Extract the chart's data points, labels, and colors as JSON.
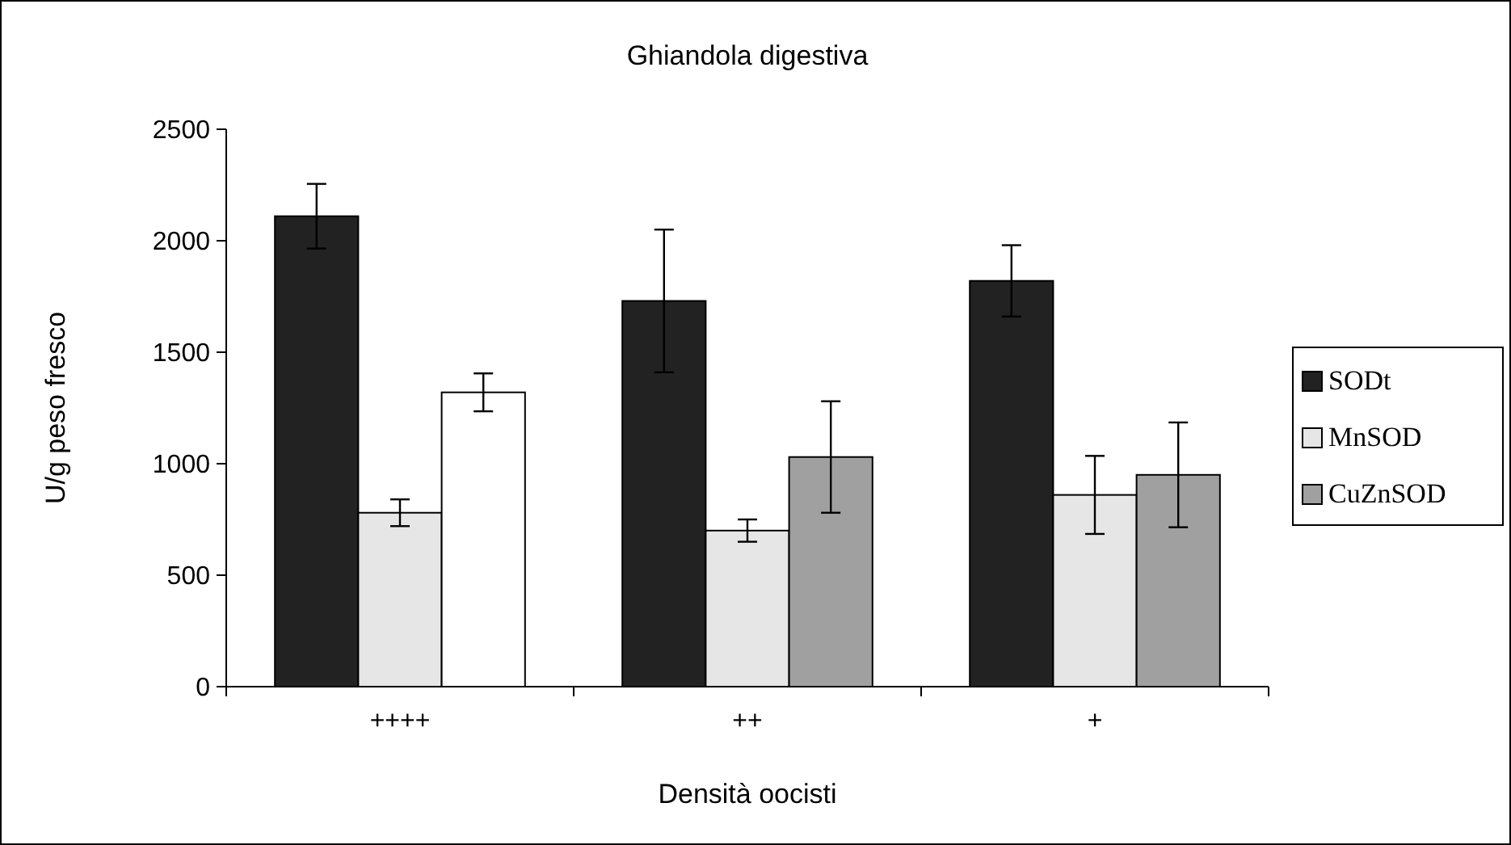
{
  "chart_data": {
    "type": "bar",
    "title": "Ghiandola digestiva",
    "xlabel": "Densità oocisti",
    "ylabel": "U/g peso fresco",
    "categories": [
      "++++",
      "++",
      "+"
    ],
    "series": [
      {
        "name": "SODt",
        "color": "#222222",
        "values": [
          2110,
          1730,
          1820
        ],
        "errors": [
          145,
          320,
          160
        ]
      },
      {
        "name": "MnSOD",
        "color": "#e6e6e6",
        "values": [
          780,
          700,
          860
        ],
        "errors": [
          60,
          50,
          175
        ]
      },
      {
        "name": "CuZnSOD",
        "color": "#a0a0a0",
        "colors": [
          "#ffffff",
          "#a0a0a0",
          "#a0a0a0"
        ],
        "values": [
          1320,
          1030,
          950
        ],
        "errors": [
          85,
          250,
          235
        ]
      }
    ],
    "ylim": [
      0,
      2500
    ],
    "yticks": [
      0,
      500,
      1000,
      1500,
      2000,
      2500
    ],
    "grid": false,
    "legend": "right"
  }
}
